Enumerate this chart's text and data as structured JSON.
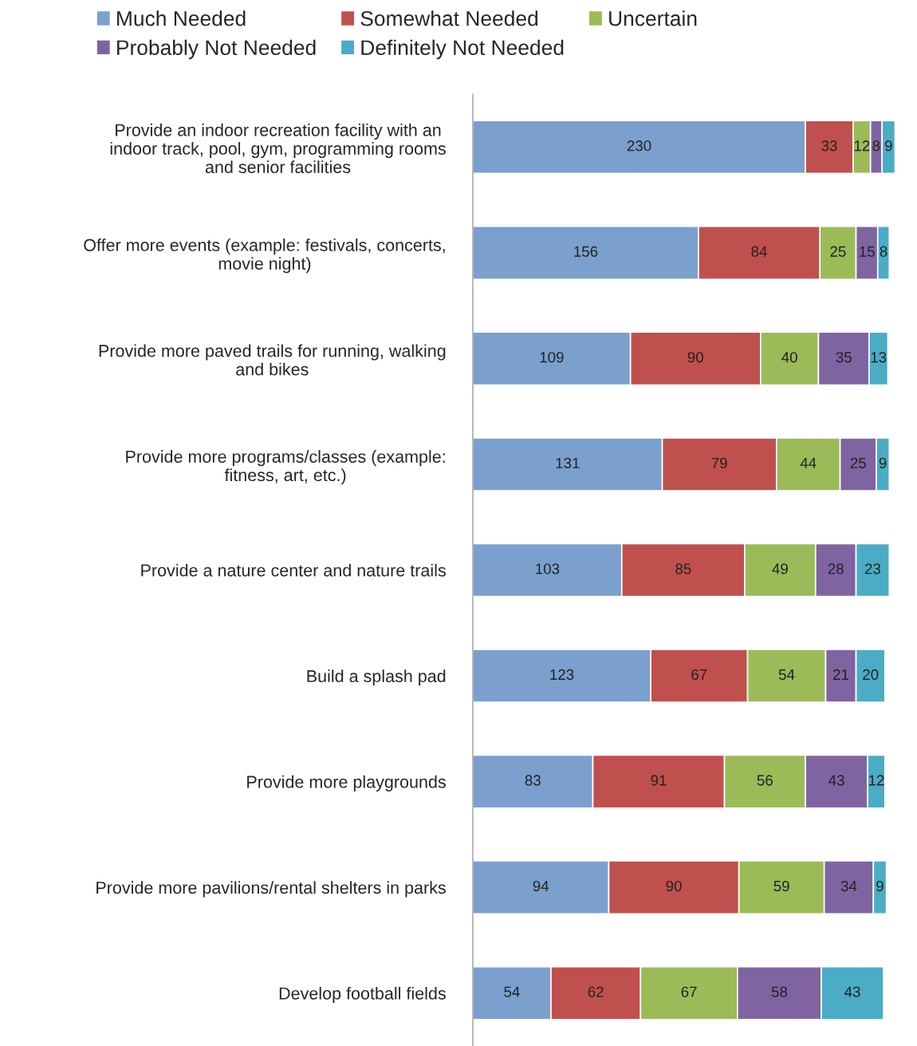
{
  "chart_data": {
    "type": "bar",
    "orientation": "horizontal",
    "stacked": true,
    "data_labels": true,
    "legend": "top left",
    "grid": false,
    "categories": [
      "Provide an indoor recreation facility with an\nindoor track, pool, gym, programming rooms\nand senior facilities",
      "Offer more events (example: festivals, concerts,\nmovie night)",
      "Provide more paved trails for running, walking\nand bikes",
      "Provide more programs/classes (example:\nfitness, art, etc.)",
      "Provide a nature center and nature trails",
      "Build a splash pad",
      "Provide more playgrounds",
      "Provide more pavilions/rental shelters in parks",
      "Develop football fields"
    ],
    "series": [
      {
        "name": "Much Needed",
        "color": "#7ba0cd",
        "values": [
          230,
          156,
          109,
          131,
          103,
          123,
          83,
          94,
          54
        ]
      },
      {
        "name": "Somewhat Needed",
        "color": "#c0504d",
        "values": [
          33,
          84,
          90,
          79,
          85,
          67,
          91,
          90,
          62
        ]
      },
      {
        "name": "Uncertain",
        "color": "#9bbb59",
        "values": [
          12,
          25,
          40,
          44,
          49,
          54,
          56,
          59,
          67
        ]
      },
      {
        "name": "Probably Not Needed",
        "color": "#8064a2",
        "values": [
          8,
          15,
          35,
          25,
          28,
          21,
          43,
          34,
          58
        ]
      },
      {
        "name": "Definitely Not Needed",
        "color": "#4bacc6",
        "values": [
          9,
          8,
          13,
          9,
          23,
          20,
          12,
          9,
          43
        ]
      }
    ]
  }
}
